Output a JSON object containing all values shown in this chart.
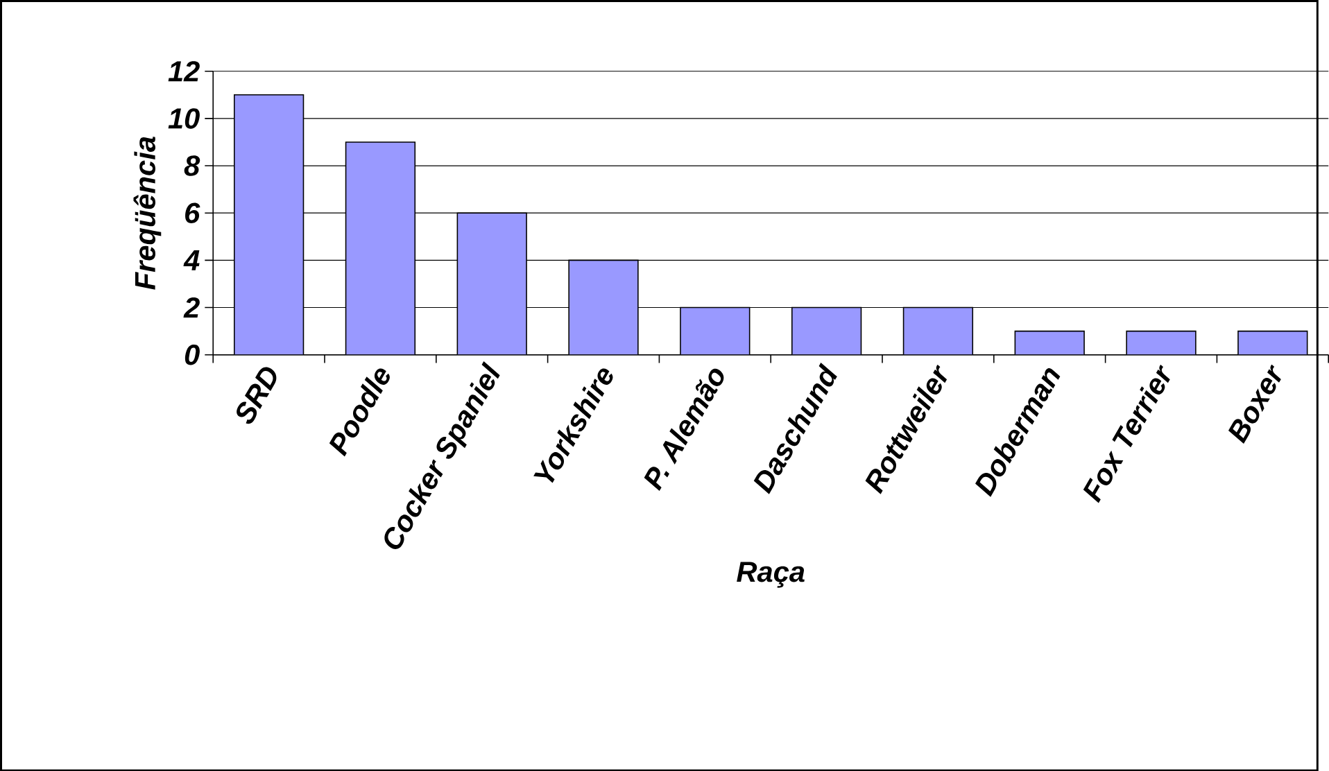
{
  "chart_data": {
    "type": "bar",
    "xlabel": "Raça",
    "ylabel": "Freqüência",
    "categories": [
      "SRD",
      "Poodle",
      "Cocker Spaniel",
      "Yorkshire",
      "P. Alemão",
      "Daschund",
      "Rottweiler",
      "Doberman",
      "Fox Terrier",
      "Boxer"
    ],
    "values": [
      11,
      9,
      6,
      4,
      2,
      2,
      2,
      1,
      1,
      1
    ],
    "color": "#9999ff",
    "ylim": [
      0,
      12
    ],
    "yticks": [
      0,
      2,
      4,
      6,
      8,
      10,
      12
    ],
    "grid": "y"
  }
}
